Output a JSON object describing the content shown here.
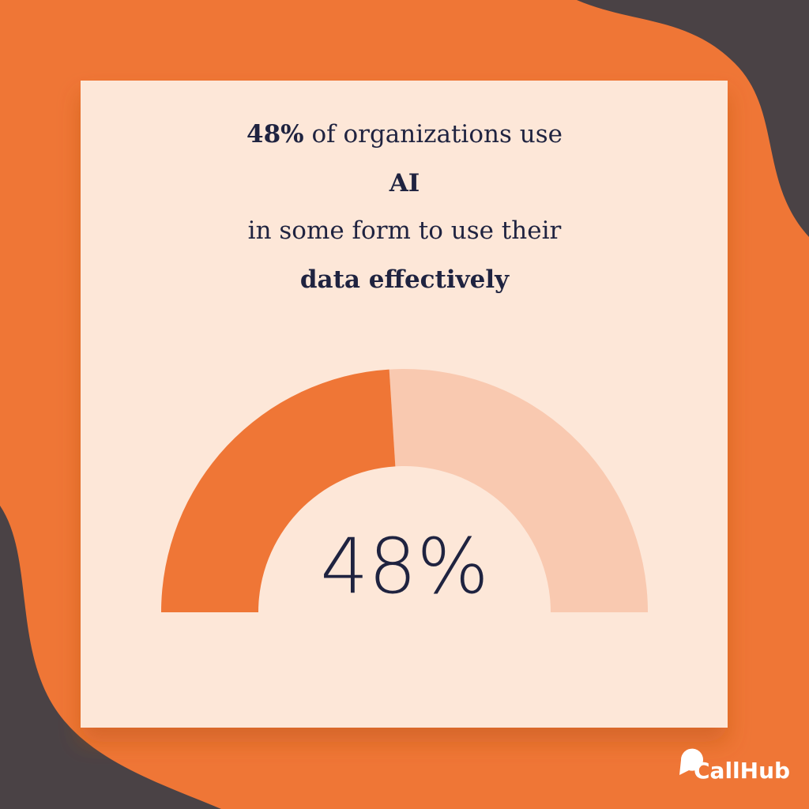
{
  "chart_data": {
    "type": "gauge",
    "title_lines": [
      [
        {
          "text": "48%",
          "bold": true
        },
        {
          "text": " of organizations use",
          "bold": false
        }
      ],
      [
        {
          "text": "AI",
          "bold": true
        }
      ],
      [
        {
          "text": "in some form to use their",
          "bold": false
        }
      ],
      [
        {
          "text": "data effectively",
          "bold": true
        }
      ]
    ],
    "value": 48,
    "value_label": "48%",
    "ylim": [
      0,
      100
    ],
    "color": "#ef7636",
    "track_color": "#f9c9b0"
  },
  "brand": "CallHub"
}
